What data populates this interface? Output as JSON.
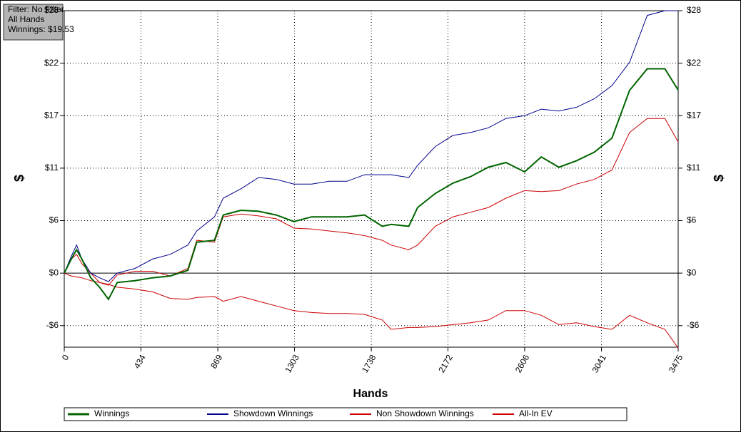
{
  "chart_data": {
    "type": "line",
    "info": [
      "Filter: No Filter",
      "All Hands",
      "Winnings: $19.53"
    ],
    "xlabel": "Hands",
    "ylabel": "$",
    "y2label": "$",
    "x": [
      0,
      40,
      70,
      100,
      150,
      200,
      250,
      300,
      400,
      500,
      600,
      700,
      750,
      850,
      900,
      1000,
      1100,
      1200,
      1300,
      1400,
      1500,
      1600,
      1700,
      1800,
      1850,
      1950,
      2000,
      2100,
      2200,
      2300,
      2400,
      2500,
      2606,
      2700,
      2800,
      2900,
      3000,
      3100,
      3200,
      3300,
      3400,
      3475
    ],
    "series": [
      {
        "name": "Winnings",
        "color": "#006400",
        "width": 2,
        "values": [
          0,
          1.5,
          2.5,
          1.5,
          -0.5,
          -1.5,
          -2.8,
          -1.0,
          -0.8,
          -0.5,
          -0.3,
          0.3,
          3.3,
          3.5,
          6.2,
          6.7,
          6.6,
          6.2,
          5.5,
          6.0,
          6.0,
          6.0,
          6.2,
          5.0,
          5.2,
          5.0,
          7.0,
          8.5,
          9.6,
          10.3,
          11.3,
          11.8,
          10.8,
          12.4,
          11.3,
          12.0,
          12.9,
          14.4,
          19.5,
          21.8,
          21.8,
          19.53
        ]
      },
      {
        "name": "Showdown Winnings",
        "color": "#00008b",
        "width": 1,
        "values": [
          0,
          1.8,
          3.0,
          1.5,
          0,
          -0.5,
          -0.9,
          0,
          0.5,
          1.5,
          2.0,
          3.0,
          4.5,
          6.0,
          8.0,
          9.0,
          10.2,
          10.0,
          9.5,
          9.5,
          9.8,
          9.8,
          10.5,
          10.5,
          10.5,
          10.2,
          11.5,
          13.5,
          14.7,
          15.0,
          15.5,
          16.5,
          16.8,
          17.5,
          17.3,
          17.7,
          18.6,
          20.0,
          22.5,
          27.5,
          28.0,
          28.0
        ]
      },
      {
        "name": "Non Showdown Winnings",
        "color": "#cc0000",
        "width": 1,
        "values": [
          0,
          -0.3,
          -0.4,
          -0.5,
          -0.8,
          -1.0,
          -1.2,
          -1.5,
          -1.7,
          -2.0,
          -2.7,
          -2.8,
          -2.6,
          -2.5,
          -3.0,
          -2.5,
          -3.0,
          -3.5,
          -4.0,
          -4.2,
          -4.3,
          -4.3,
          -4.4,
          -5.0,
          -6.0,
          -5.8,
          -5.8,
          -5.7,
          -5.5,
          -5.3,
          -5.0,
          -4.0,
          -4.0,
          -4.5,
          -5.5,
          -5.3,
          -5.7,
          -6.0,
          -4.5,
          -5.3,
          -6.0,
          -8.0
        ]
      },
      {
        "name": "All-In EV",
        "color": "#cc0000",
        "width": 1,
        "values": [
          0,
          1.5,
          2.0,
          1.0,
          0,
          -1.0,
          -1.3,
          -0.2,
          0.2,
          0.2,
          -0.3,
          0.5,
          3.5,
          3.3,
          6.0,
          6.3,
          6.1,
          5.8,
          4.8,
          4.7,
          4.5,
          4.3,
          4.0,
          3.5,
          3.0,
          2.5,
          3.0,
          5.0,
          6.0,
          6.5,
          7.0,
          8.0,
          8.8,
          8.7,
          8.8,
          9.5,
          10.0,
          11.0,
          15.0,
          16.5,
          16.5,
          14.0
        ]
      }
    ],
    "xlim": [
      0,
      3475
    ],
    "xticks": [
      0,
      434,
      869,
      1303,
      1738,
      2172,
      2606,
      3041,
      3475
    ],
    "ylim": [
      -7.9,
      28
    ],
    "yticks": [
      {
        "value": -5.6,
        "label": "-$6"
      },
      {
        "value": 0,
        "label": "$0"
      },
      {
        "value": 5.6,
        "label": "$6"
      },
      {
        "value": 11.2,
        "label": "$11"
      },
      {
        "value": 16.8,
        "label": "$17"
      },
      {
        "value": 22.4,
        "label": "$22"
      },
      {
        "value": 28,
        "label": "$28"
      }
    ],
    "grid": true
  }
}
